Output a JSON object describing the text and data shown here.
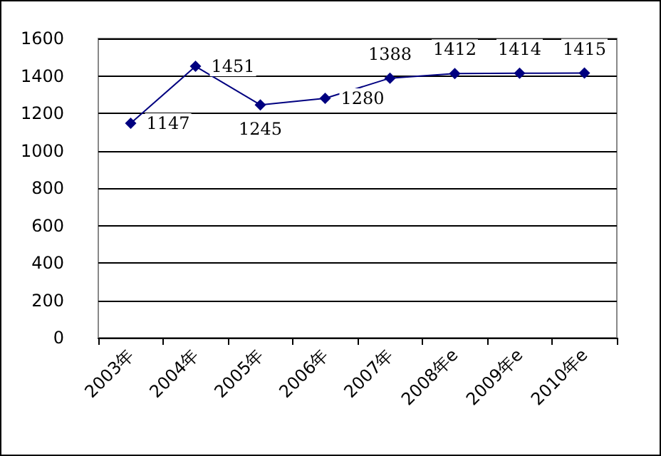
{
  "chart_data": {
    "type": "line",
    "categories": [
      "2003年",
      "2004年",
      "2005年",
      "2006年",
      "2007年",
      "2008年e",
      "2009年e",
      "2010年e"
    ],
    "series": [
      {
        "color": "#000080",
        "values": [
          1147,
          1451,
          1245,
          1280,
          1388,
          1412,
          1414,
          1415
        ]
      }
    ],
    "ylim": [
      0,
      1600
    ],
    "yticks": [
      0,
      200,
      400,
      600,
      800,
      1000,
      1200,
      1400,
      1600
    ],
    "grid": "y",
    "marker": "diamond",
    "line_style": "solid",
    "data_labels": true
  }
}
